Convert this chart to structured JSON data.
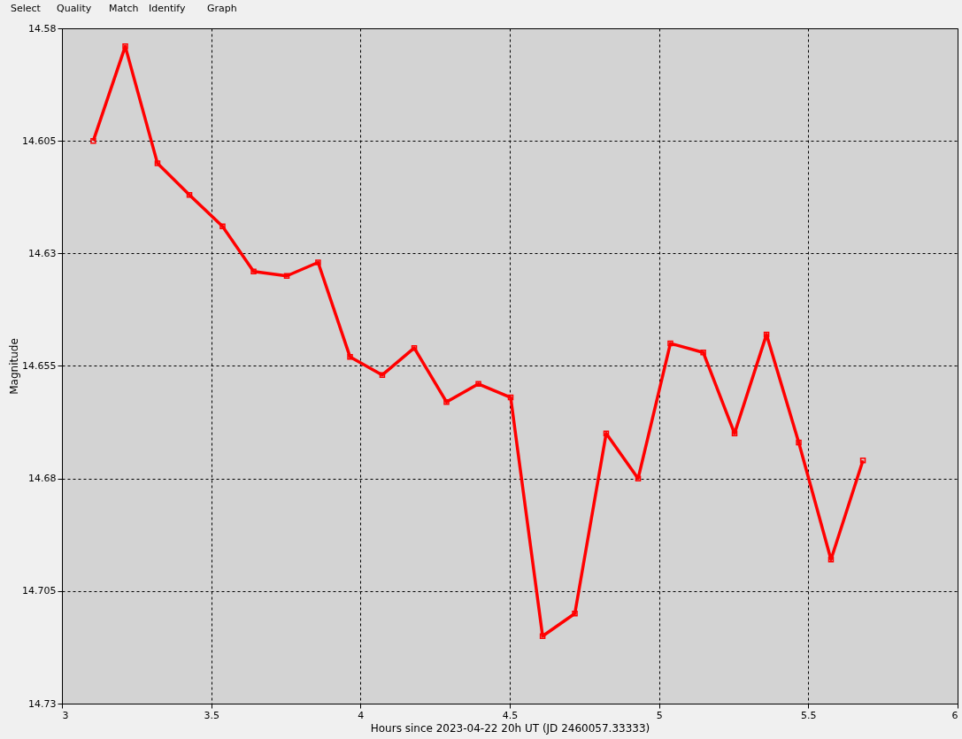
{
  "chart_data": {
    "type": "line",
    "xlabel": "Hours since 2023-04-22 20h UT (JD 2460057.33333)",
    "ylabel": "Magnitude",
    "annotations": [
      "Select",
      "Quality",
      "Match",
      "Identify",
      "Graph"
    ],
    "x": [
      3.105,
      3.212,
      3.32,
      3.427,
      3.538,
      3.642,
      3.753,
      3.858,
      3.965,
      4.073,
      4.18,
      4.288,
      4.395,
      4.503,
      4.61,
      4.718,
      4.823,
      4.93,
      5.038,
      5.148,
      5.253,
      5.36,
      5.468,
      5.576,
      5.683
    ],
    "series": [
      {
        "color": "#ff0000",
        "values": [
          14.605,
          14.584,
          14.61,
          14.617,
          14.624,
          14.634,
          14.635,
          14.632,
          14.653,
          14.657,
          14.651,
          14.663,
          14.659,
          14.662,
          14.715,
          14.71,
          14.67,
          14.68,
          14.65,
          14.652,
          14.67,
          14.648,
          14.672,
          14.698,
          14.676
        ]
      }
    ],
    "xlim": [
      3,
      6
    ],
    "xticks": [
      3,
      3.5,
      4,
      4.5,
      5,
      5.5,
      6
    ],
    "ylim": [
      14.73,
      14.58
    ],
    "yticks": [
      14.58,
      14.605,
      14.63,
      14.655,
      14.68,
      14.705,
      14.73
    ],
    "grid": true,
    "marker": "square",
    "line_style": "solid"
  }
}
